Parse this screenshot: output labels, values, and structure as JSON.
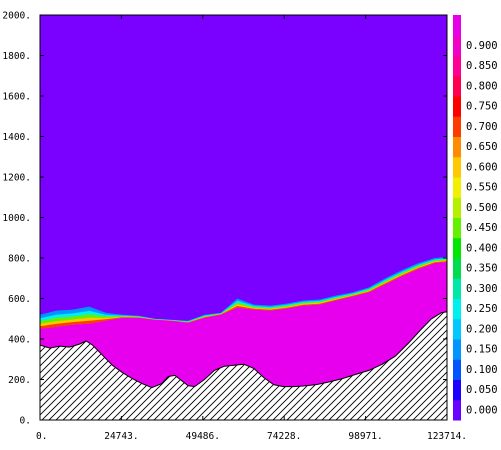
{
  "chart_data": {
    "type": "heatmap",
    "title": "",
    "xlabel": "",
    "ylabel": "",
    "xlim": [
      0,
      123714
    ],
    "ylim": [
      0,
      2000
    ],
    "x_ticks": [
      {
        "value": 0,
        "label": "0."
      },
      {
        "value": 24743,
        "label": "24743."
      },
      {
        "value": 49486,
        "label": "49486."
      },
      {
        "value": 74228,
        "label": "74228."
      },
      {
        "value": 98971,
        "label": "98971."
      },
      {
        "value": 123714,
        "label": "123714."
      }
    ],
    "y_ticks": [
      {
        "value": 0,
        "label": "0."
      },
      {
        "value": 200,
        "label": "200."
      },
      {
        "value": 400,
        "label": "400."
      },
      {
        "value": 600,
        "label": "600."
      },
      {
        "value": 800,
        "label": "800."
      },
      {
        "value": 1000,
        "label": "1000."
      },
      {
        "value": 1200,
        "label": "1200."
      },
      {
        "value": 1400,
        "label": "1400."
      },
      {
        "value": 1600,
        "label": "1600."
      },
      {
        "value": 1800,
        "label": "1800."
      },
      {
        "value": 2000,
        "label": "2000."
      }
    ],
    "colorbar": {
      "levels": [
        {
          "label": "0.000",
          "color": "#6a00ff"
        },
        {
          "label": "0.050",
          "color": "#1a00ff"
        },
        {
          "label": "0.100",
          "color": "#0055ff"
        },
        {
          "label": "0.150",
          "color": "#0096ff"
        },
        {
          "label": "0.200",
          "color": "#00c8ff"
        },
        {
          "label": "0.250",
          "color": "#00f0f0"
        },
        {
          "label": "0.300",
          "color": "#00e8a8"
        },
        {
          "label": "0.350",
          "color": "#00dc50"
        },
        {
          "label": "0.400",
          "color": "#00e600"
        },
        {
          "label": "0.450",
          "color": "#64f000"
        },
        {
          "label": "0.500",
          "color": "#b4f000"
        },
        {
          "label": "0.550",
          "color": "#f0f000"
        },
        {
          "label": "0.600",
          "color": "#ffc800"
        },
        {
          "label": "0.650",
          "color": "#ff8c00"
        },
        {
          "label": "0.700",
          "color": "#ff3c00"
        },
        {
          "label": "0.750",
          "color": "#ff0000"
        },
        {
          "label": "0.800",
          "color": "#ff0050"
        },
        {
          "label": "0.850",
          "color": "#ff0096"
        },
        {
          "label": "0.900",
          "color": "#f000c8"
        },
        {
          "label": "",
          "color": "#e600e6"
        }
      ]
    },
    "background_color": "#7a00ff",
    "fluid_color": "#e600ee",
    "terrain": {
      "x": [
        0,
        3000,
        6000,
        9000,
        12000,
        14000,
        16000,
        19000,
        22000,
        25000,
        28000,
        31000,
        34000,
        37000,
        39000,
        41000,
        43000,
        45000,
        47000,
        50000,
        53000,
        56000,
        59000,
        62000,
        65000,
        68000,
        71000,
        74000,
        77000,
        80000,
        84000,
        88000,
        92000,
        96000,
        100000,
        104000,
        108000,
        112000,
        116000,
        119000,
        122000,
        123714
      ],
      "y": [
        370,
        355,
        365,
        360,
        375,
        390,
        370,
        320,
        270,
        235,
        205,
        180,
        160,
        180,
        215,
        220,
        195,
        170,
        165,
        200,
        245,
        265,
        270,
        275,
        255,
        210,
        175,
        165,
        165,
        168,
        175,
        188,
        205,
        225,
        245,
        275,
        315,
        380,
        450,
        500,
        530,
        535
      ]
    },
    "fluid_top": {
      "x": [
        0,
        5000,
        10000,
        15000,
        20000,
        25000,
        30000,
        35000,
        40000,
        45000,
        50000,
        55000,
        60000,
        65000,
        70000,
        75000,
        80000,
        85000,
        90000,
        95000,
        100000,
        105000,
        110000,
        115000,
        120000,
        123714
      ],
      "y": [
        450,
        460,
        470,
        475,
        490,
        505,
        505,
        495,
        490,
        480,
        505,
        520,
        555,
        545,
        540,
        550,
        565,
        570,
        590,
        610,
        630,
        670,
        710,
        745,
        775,
        780
      ]
    },
    "interface_top": {
      "x": [
        0,
        5000,
        10000,
        15000,
        20000,
        25000,
        30000,
        35000,
        40000,
        45000,
        50000,
        55000,
        60000,
        65000,
        70000,
        75000,
        80000,
        85000,
        90000,
        95000,
        100000,
        105000,
        110000,
        115000,
        120000,
        123714
      ],
      "y": [
        520,
        540,
        545,
        560,
        530,
        520,
        515,
        500,
        495,
        490,
        520,
        530,
        600,
        570,
        565,
        575,
        590,
        595,
        615,
        630,
        655,
        700,
        740,
        775,
        800,
        805
      ]
    }
  }
}
